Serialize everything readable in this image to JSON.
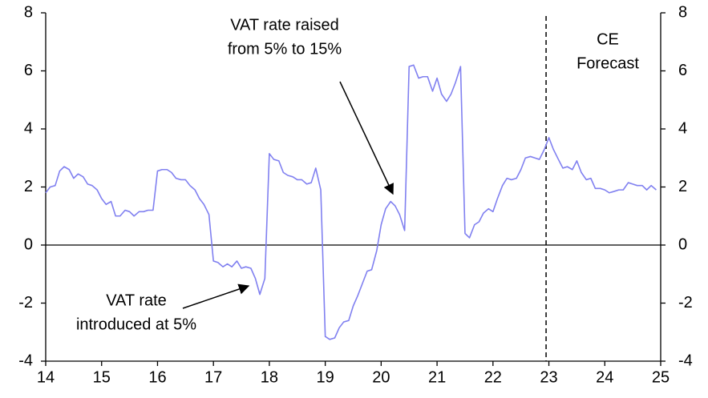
{
  "chart_data": {
    "type": "line",
    "x": [
      14.0,
      14.08,
      14.17,
      14.25,
      14.33,
      14.42,
      14.5,
      14.58,
      14.67,
      14.75,
      14.83,
      14.92,
      15.0,
      15.08,
      15.17,
      15.25,
      15.33,
      15.42,
      15.5,
      15.58,
      15.67,
      15.75,
      15.83,
      15.92,
      16.0,
      16.08,
      16.17,
      16.25,
      16.33,
      16.42,
      16.5,
      16.58,
      16.67,
      16.75,
      16.83,
      16.92,
      17.0,
      17.08,
      17.17,
      17.25,
      17.33,
      17.42,
      17.5,
      17.58,
      17.67,
      17.75,
      17.83,
      17.92,
      18.0,
      18.08,
      18.17,
      18.25,
      18.33,
      18.42,
      18.5,
      18.58,
      18.67,
      18.75,
      18.83,
      18.92,
      19.0,
      19.08,
      19.17,
      19.25,
      19.33,
      19.42,
      19.5,
      19.58,
      19.67,
      19.75,
      19.83,
      19.92,
      20.0,
      20.08,
      20.17,
      20.25,
      20.33,
      20.42,
      20.5,
      20.58,
      20.67,
      20.75,
      20.83,
      20.92,
      21.0,
      21.08,
      21.17,
      21.25,
      21.33,
      21.42,
      21.5,
      21.58,
      21.67,
      21.75,
      21.83,
      21.92,
      22.0,
      22.08,
      22.17,
      22.25,
      22.33,
      22.42,
      22.5,
      22.58,
      22.67,
      22.75,
      22.83,
      22.92,
      23.0,
      23.08,
      23.17,
      23.25,
      23.33,
      23.42,
      23.5,
      23.58,
      23.67,
      23.75,
      23.83,
      23.92,
      24.0,
      24.08,
      24.17,
      24.25,
      24.33,
      24.42,
      24.5,
      24.58,
      24.67,
      24.75,
      24.83,
      24.92
    ],
    "series": [
      {
        "color": "#8080f0",
        "values": [
          1.8,
          2.0,
          2.05,
          2.55,
          2.7,
          2.6,
          2.3,
          2.45,
          2.35,
          2.1,
          2.05,
          1.9,
          1.6,
          1.4,
          1.5,
          1.0,
          1.0,
          1.2,
          1.15,
          1.0,
          1.15,
          1.15,
          1.2,
          1.2,
          2.55,
          2.6,
          2.6,
          2.5,
          2.3,
          2.25,
          2.25,
          2.05,
          1.9,
          1.6,
          1.4,
          1.05,
          -0.55,
          -0.6,
          -0.75,
          -0.65,
          -0.75,
          -0.55,
          -0.8,
          -0.75,
          -0.8,
          -1.15,
          -1.7,
          -1.15,
          3.15,
          2.95,
          2.9,
          2.5,
          2.4,
          2.35,
          2.25,
          2.25,
          2.1,
          2.15,
          2.65,
          1.9,
          -3.15,
          -3.25,
          -3.2,
          -2.85,
          -2.65,
          -2.6,
          -2.1,
          -1.75,
          -1.3,
          -0.9,
          -0.85,
          -0.2,
          0.7,
          1.25,
          1.5,
          1.35,
          1.05,
          0.5,
          6.15,
          6.2,
          5.75,
          5.8,
          5.8,
          5.3,
          5.75,
          5.2,
          4.95,
          5.2,
          5.6,
          6.15,
          0.4,
          0.25,
          0.7,
          0.8,
          1.1,
          1.25,
          1.15,
          1.6,
          2.05,
          2.3,
          2.25,
          2.3,
          2.6,
          3.0,
          3.05,
          3.0,
          2.95,
          3.3,
          3.7,
          3.3,
          2.95,
          2.65,
          2.7,
          2.6,
          2.9,
          2.5,
          2.25,
          2.3,
          1.95,
          1.95,
          1.9,
          1.8,
          1.85,
          1.9,
          1.9,
          2.15,
          2.1,
          2.05,
          2.05,
          1.9,
          2.05,
          1.9
        ]
      }
    ],
    "xlim": [
      14,
      25
    ],
    "xticks": [
      14,
      15,
      16,
      17,
      18,
      19,
      20,
      21,
      22,
      23,
      24,
      25
    ],
    "ylim": [
      -4,
      8
    ],
    "yticks": [
      -4,
      -2,
      0,
      2,
      4,
      6,
      8
    ],
    "y2lim": [
      -4,
      8
    ],
    "y2ticks": [
      -4,
      -2,
      0,
      2,
      4,
      6,
      8
    ],
    "forecast_start": 22.95,
    "annotations": [
      {
        "lines": [
          "VAT rate raised",
          "from 5% to 15%"
        ]
      },
      {
        "lines": [
          "VAT rate",
          "introduced at 5%"
        ]
      },
      {
        "lines": [
          "CE",
          "Forecast"
        ]
      }
    ]
  }
}
